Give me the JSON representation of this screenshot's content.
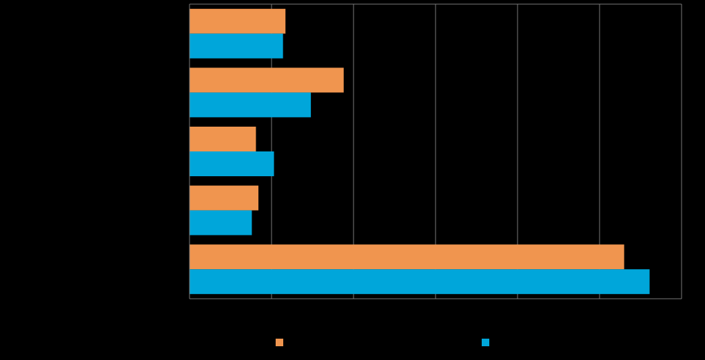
{
  "chart_data": {
    "type": "bar",
    "orientation": "horizontal",
    "categories": [
      "",
      "",
      "",
      "",
      ""
    ],
    "series": [
      {
        "name": "",
        "color": "#F0954F",
        "values": [
          11.7,
          18.8,
          8.1,
          8.4,
          53.0
        ]
      },
      {
        "name": "",
        "color": "#00A6DA",
        "values": [
          11.4,
          14.8,
          10.3,
          7.6,
          56.1
        ]
      }
    ],
    "xlim": [
      0,
      60
    ],
    "x_gridlines": [
      10,
      20,
      30,
      40,
      50
    ],
    "grid": true,
    "legend": "bottom",
    "background": "#000000",
    "gridline_color": "#7a7a7a"
  }
}
